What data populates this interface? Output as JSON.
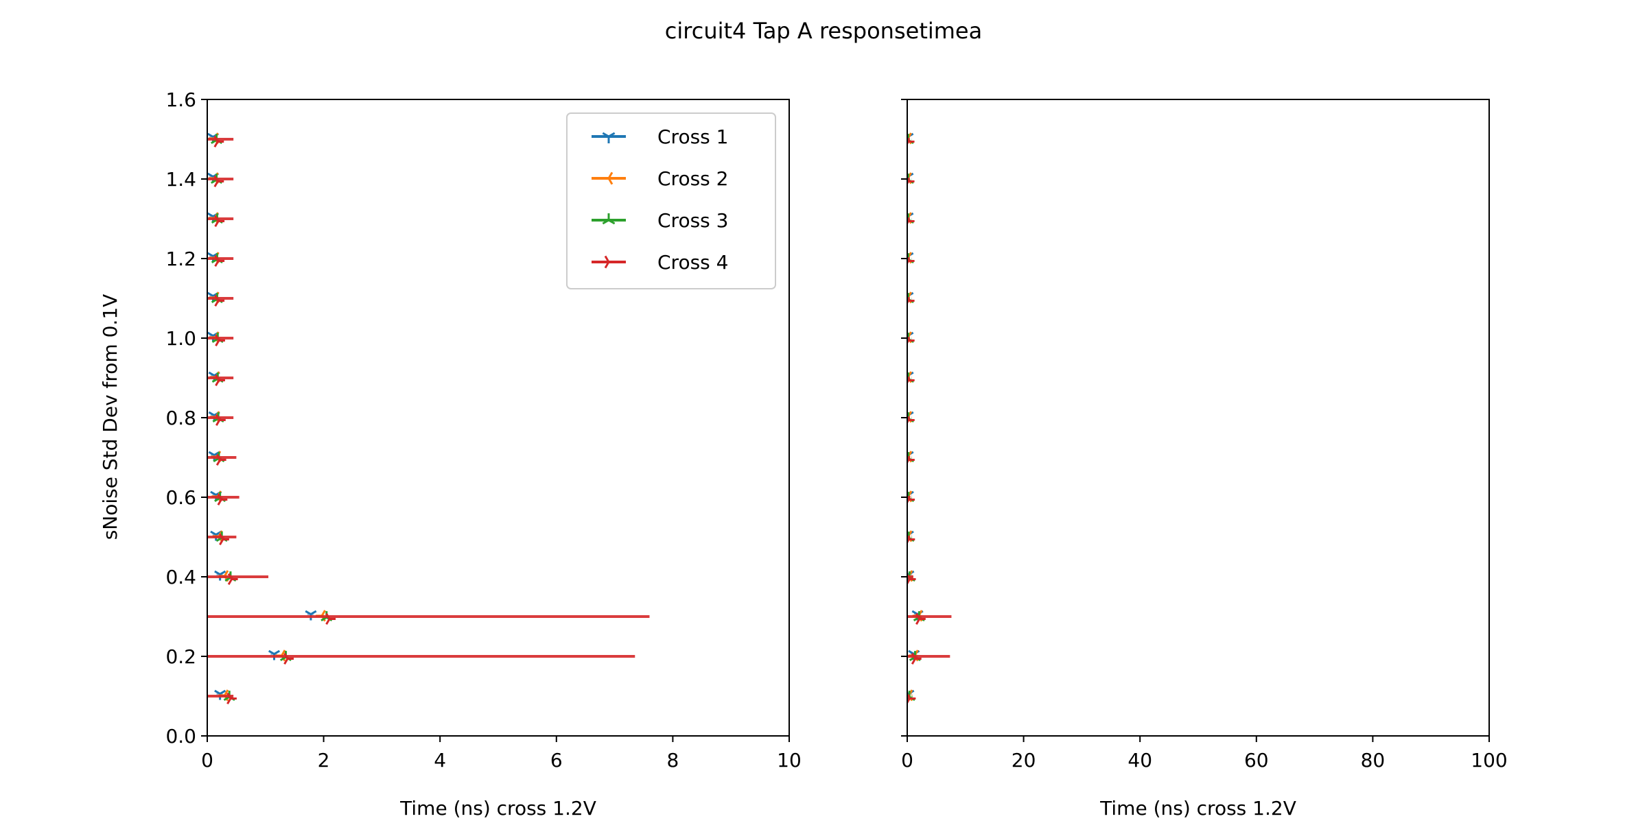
{
  "chart_data": {
    "type": "scatter",
    "title": "circuit4 Tap A responsetimea",
    "ylabel": "sNoise Std Dev from 0.1V",
    "ylim": [
      0,
      1.6
    ],
    "yticks": [
      "0.0",
      "0.2",
      "0.4",
      "0.6",
      "0.8",
      "1.0",
      "1.2",
      "1.4",
      "1.6"
    ],
    "noise_levels": [
      0.1,
      0.2,
      0.3,
      0.4,
      0.5,
      0.6,
      0.7,
      0.8,
      0.9,
      1.0,
      1.1,
      1.2,
      1.3,
      1.4,
      1.5
    ],
    "series": [
      {
        "name": "Cross 1",
        "color": "#1f77b4",
        "marker": "tri_down",
        "y_offset": 0.006,
        "x": [
          0.22,
          1.15,
          1.78,
          0.22,
          0.15,
          0.15,
          0.12,
          0.12,
          0.12,
          0.1,
          0.1,
          0.1,
          0.1,
          0.1,
          0.1
        ]
      },
      {
        "name": "Cross 2",
        "color": "#ff7f0e",
        "marker": "tri_left",
        "y_offset": 0.002,
        "x": [
          0.3,
          1.28,
          1.97,
          0.3,
          0.2,
          0.18,
          0.17,
          0.15,
          0.15,
          0.14,
          0.14,
          0.14,
          0.13,
          0.13,
          0.13
        ]
      },
      {
        "name": "Cross 3",
        "color": "#2ca02c",
        "marker": "tri_up",
        "y_offset": -0.002,
        "x": [
          0.38,
          1.35,
          2.05,
          0.4,
          0.25,
          0.22,
          0.2,
          0.19,
          0.18,
          0.18,
          0.17,
          0.17,
          0.17,
          0.16,
          0.16
        ]
      },
      {
        "name": "Cross 4",
        "color": "#d62728",
        "marker": "tri_right",
        "y_offset": -0.006,
        "x": [
          0.4,
          1.38,
          2.1,
          0.42,
          0.27,
          0.24,
          0.22,
          0.21,
          0.2,
          0.2,
          0.19,
          0.19,
          0.19,
          0.18,
          0.18
        ],
        "err_x": [
          0.45,
          7.35,
          7.6,
          1.05,
          0.5,
          0.55,
          0.5,
          0.45,
          0.45,
          0.45,
          0.45,
          0.45,
          0.45,
          0.45,
          0.45
        ]
      }
    ],
    "panels": [
      {
        "name": "left",
        "xlabel": "Time (ns) cross 1.2V",
        "xlim": [
          0,
          10
        ],
        "xticks": [
          "0",
          "2",
          "4",
          "6",
          "8",
          "10"
        ],
        "show_legend": true,
        "show_ytick_labels": true
      },
      {
        "name": "right",
        "xlabel": "Time (ns) cross 1.2V",
        "xlim": [
          0,
          100
        ],
        "xticks": [
          "0",
          "20",
          "40",
          "60",
          "80",
          "100"
        ],
        "show_legend": false,
        "show_ytick_labels": false
      }
    ],
    "legend_location": "top-right"
  }
}
